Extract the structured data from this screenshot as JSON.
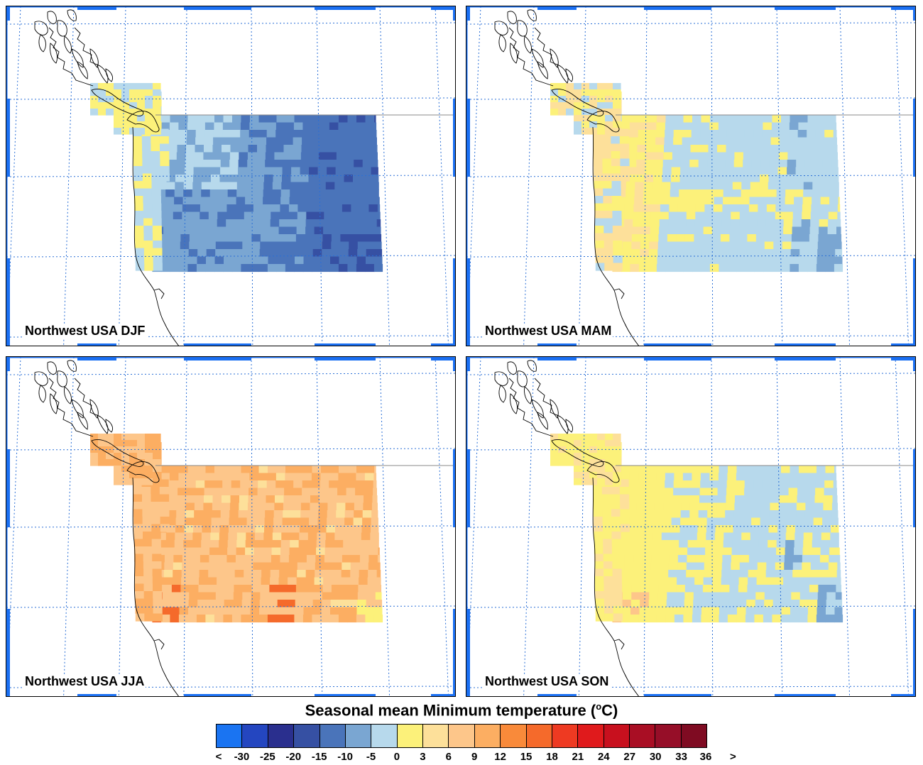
{
  "panels": [
    {
      "id": "djf",
      "title": "Northwest USA DJF"
    },
    {
      "id": "mam",
      "title": "Northwest USA MAM"
    },
    {
      "id": "jja",
      "title": "Northwest USA JJA"
    },
    {
      "id": "son",
      "title": "Northwest USA SON"
    }
  ],
  "colorbar": {
    "title": "Seasonal mean Minimum temperature (",
    "title_unit": "o",
    "title_suffix": "C)",
    "labels": [
      "<",
      "-30",
      "-25",
      "-20",
      "-15",
      "-10",
      "-5",
      "0",
      "3",
      "6",
      "9",
      "12",
      "15",
      "18",
      "21",
      "24",
      "27",
      "30",
      "33",
      "36",
      ">"
    ],
    "colors": [
      "#1a74f2",
      "#2446c0",
      "#2a2f8e",
      "#3650a3",
      "#4a74ba",
      "#7aa6d2",
      "#b7d9ec",
      "#fcf17a",
      "#fde09a",
      "#fdc68a",
      "#fcae62",
      "#f98a3a",
      "#f56a2b",
      "#ee3a22",
      "#e01a1c",
      "#c8101e",
      "#a90e24",
      "#960e28",
      "#7f0b22"
    ]
  },
  "map_colors": {
    "panel_frame": "#1a6ff2",
    "grid_line": "#2a6fd6",
    "coast": "#000000"
  }
}
